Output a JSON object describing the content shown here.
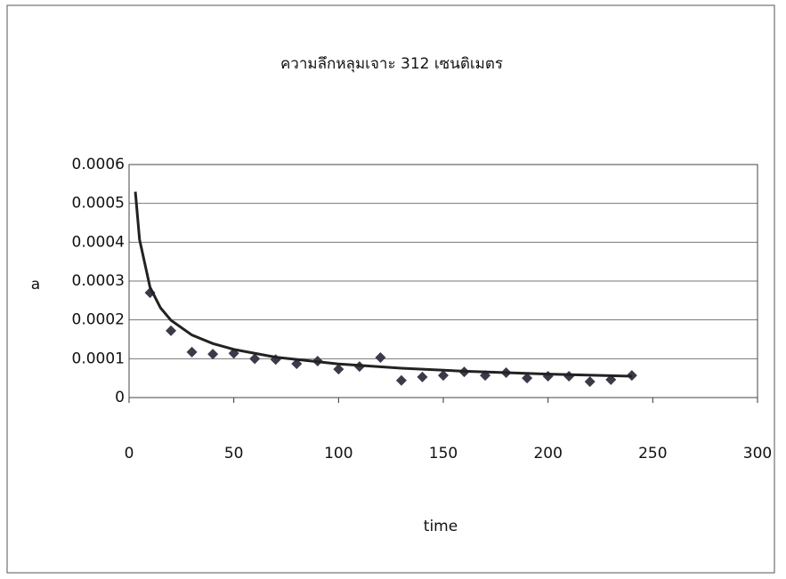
{
  "chart_data": {
    "type": "scatter",
    "title": "ความลึกหลุมเจาะ 312 เซนติเมตร",
    "x_label": "time",
    "y_label": "a",
    "xlim": [
      0,
      300
    ],
    "xticks": [
      0,
      50,
      100,
      150,
      200,
      250,
      300
    ],
    "ylim": [
      0,
      0.0006
    ],
    "yticks": [
      0,
      0.0001,
      0.0002,
      0.0003,
      0.0004,
      0.0005,
      0.0006
    ],
    "grid": true,
    "series": [
      {
        "mode": "markers",
        "color": "#3a3a4a",
        "x": [
          10,
          20,
          30,
          40,
          50,
          60,
          70,
          80,
          90,
          100,
          110,
          120,
          130,
          140,
          150,
          160,
          170,
          180,
          190,
          200,
          210,
          220,
          230,
          240
        ],
        "values": [
          0.00027,
          0.000172,
          0.000117,
          0.000112,
          0.000114,
          0.0001,
          9.8e-05,
          8.7e-05,
          9.4e-05,
          7.3e-05,
          8e-05,
          0.000103,
          4.4e-05,
          5.3e-05,
          5.7e-05,
          6.6e-05,
          5.7e-05,
          6.4e-05,
          5e-05,
          5.5e-05,
          5.5e-05,
          4.1e-05,
          4.6e-05,
          5.7e-05
        ]
      },
      {
        "mode": "lines",
        "color": "#222222",
        "x": [
          3,
          5,
          10,
          15,
          20,
          30,
          40,
          50,
          70,
          100,
          130,
          160,
          200,
          240
        ],
        "values": [
          0.00053,
          0.000407,
          0.000284,
          0.000231,
          0.000199,
          0.000161,
          0.000139,
          0.000124,
          0.000104,
          8.65e-05,
          7.55e-05,
          6.78e-05,
          6.04e-05,
          5.5e-05
        ]
      }
    ]
  }
}
